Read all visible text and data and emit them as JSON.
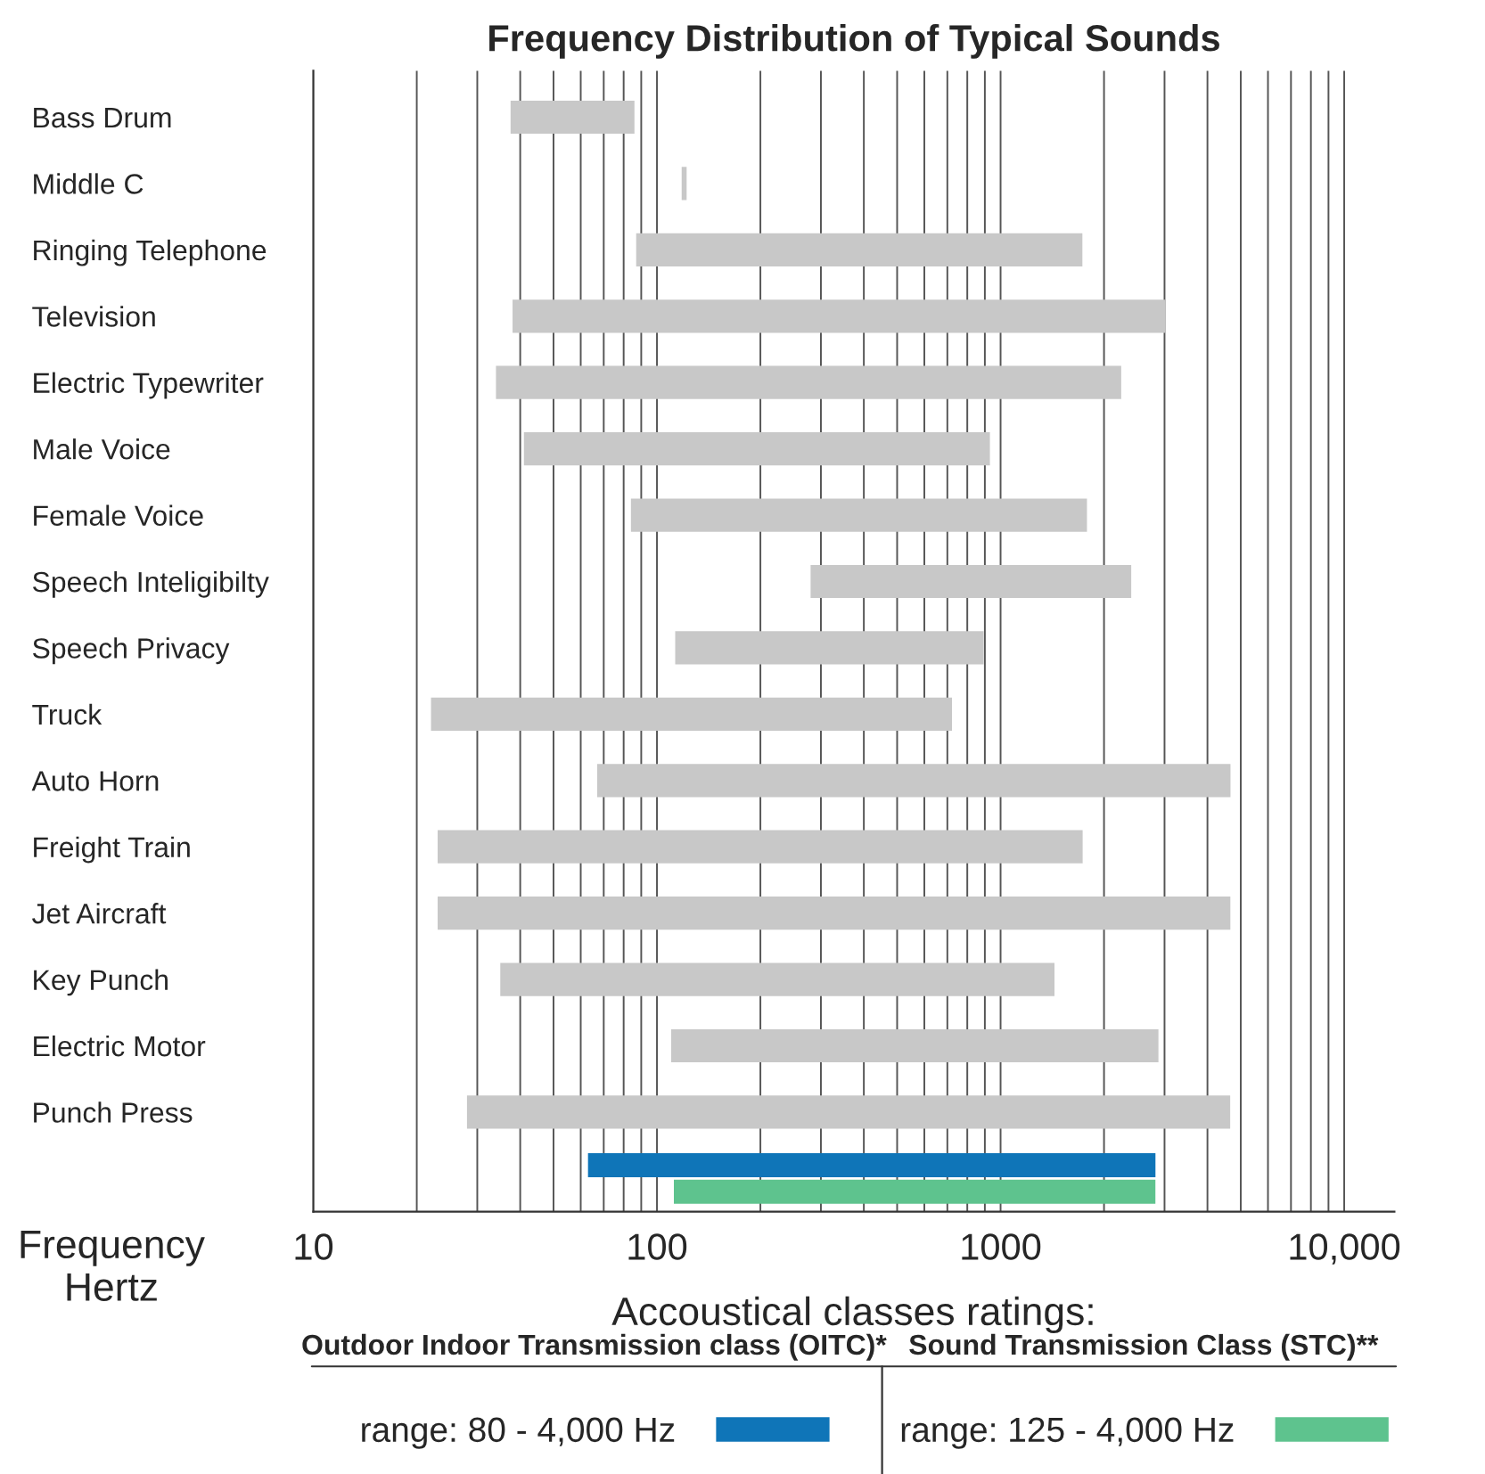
{
  "chart_data": {
    "type": "bar",
    "orientation": "horizontal",
    "title": "Frequency Distribution of Typical Sounds",
    "xlabel": "Frequency\nHertz",
    "legend_title": "Accoustical classes ratings:",
    "categories": [
      "Bass Drum",
      "Middle C",
      "Ringing Telephone",
      "Television",
      "Electric Typewriter",
      "Male Voice",
      "Female Voice",
      "Speech Inteligibilty",
      "Speech Privacy",
      "Truck",
      "Auto Horn",
      "Freight Train",
      "Jet Aircraft",
      "Key Punch",
      "Electric Motor",
      "Punch Press",
      null
    ],
    "series": [
      {
        "color": "#c8c8c8",
        "base": [
          37.5,
          118,
          87,
          38,
          34,
          41,
          84,
          280,
          113,
          22,
          67,
          23,
          23,
          35,
          110,
          28,
          null
        ],
        "values": [
          48.5,
          4,
          1643,
          2980,
          2210,
          890,
          1700,
          2120,
          780,
          700,
          4600,
          1710,
          4640,
          1400,
          2770,
          4630,
          null
        ]
      },
      {
        "name": "range: 80 - 4,000 Hz",
        "color": "#0f75b8",
        "base": [
          null,
          null,
          null,
          null,
          null,
          null,
          null,
          null,
          null,
          null,
          null,
          null,
          null,
          null,
          null,
          null,
          63
        ],
        "values": [
          null,
          null,
          null,
          null,
          null,
          null,
          null,
          null,
          null,
          null,
          null,
          null,
          null,
          null,
          null,
          null,
          2760
        ]
      },
      {
        "name": "range: 125 - 4,000 Hz",
        "color": "#5ec38e",
        "base": [
          null,
          null,
          null,
          null,
          null,
          null,
          null,
          null,
          null,
          null,
          null,
          null,
          null,
          null,
          null,
          null,
          112
        ],
        "values": [
          null,
          null,
          null,
          null,
          null,
          null,
          null,
          null,
          null,
          null,
          null,
          null,
          null,
          null,
          null,
          null,
          2710
        ]
      }
    ],
    "annotations": [
      "Outdoor Indoor Transmission class (OITC)*",
      "Sound Transmission Class (STC)**"
    ],
    "log": "x",
    "xlim": [
      10,
      14000
    ],
    "xticks": [
      10,
      100,
      1000,
      {
        "value": 10000,
        "label": "10,000"
      }
    ],
    "grid": "x",
    "legend": "bottom"
  }
}
